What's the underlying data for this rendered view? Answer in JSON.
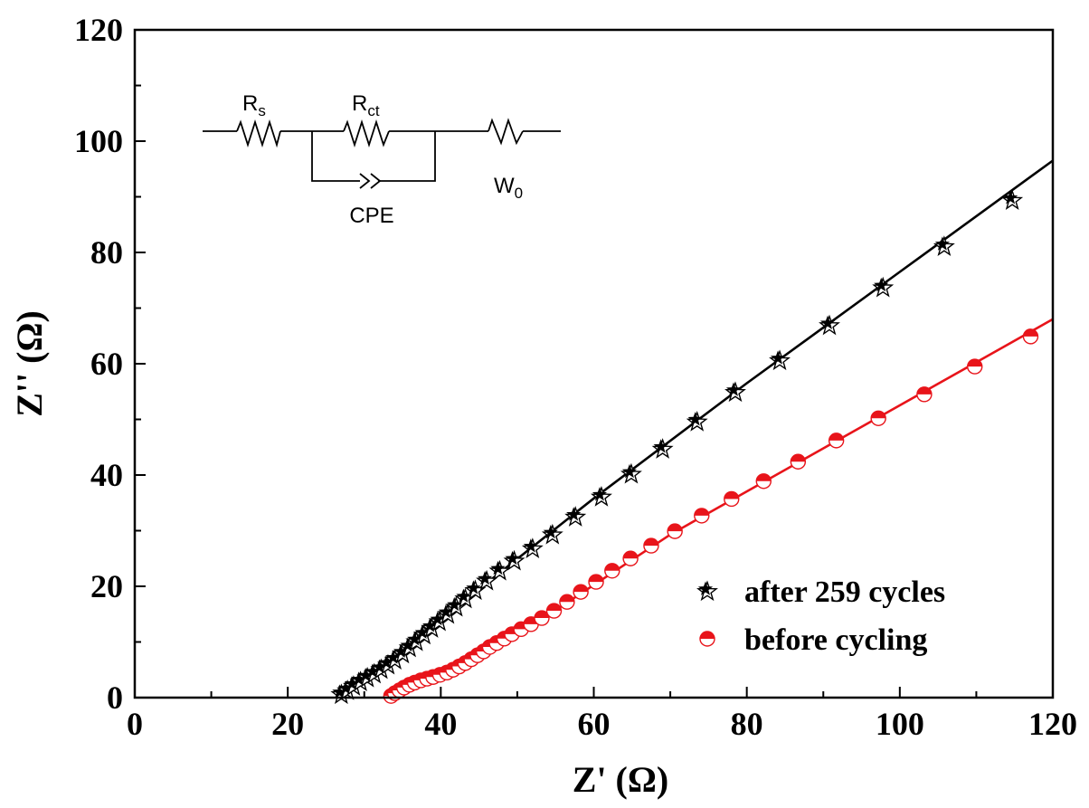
{
  "chart_data": {
    "type": "scatter",
    "xlabel": "Z' (Ω)",
    "ylabel": "Z'' (Ω)",
    "xlim": [
      0,
      120
    ],
    "ylim": [
      0,
      120
    ],
    "xticks": [
      "0",
      "20",
      "40",
      "60",
      "80",
      "100",
      "120"
    ],
    "yticks": [
      "0",
      "20",
      "40",
      "60",
      "80",
      "100",
      "120"
    ],
    "grid": false,
    "legend_position": "bottom-right",
    "series": [
      {
        "name": "after 259 cycles",
        "marker": "star",
        "color": "#000000",
        "points": [
          [
            27.0,
            0.5
          ],
          [
            27.8,
            1.2
          ],
          [
            28.6,
            2.0
          ],
          [
            29.5,
            2.8
          ],
          [
            30.4,
            3.5
          ],
          [
            31.3,
            4.2
          ],
          [
            32.2,
            5.0
          ],
          [
            33.1,
            5.8
          ],
          [
            34.0,
            6.7
          ],
          [
            35.0,
            7.8
          ],
          [
            35.9,
            8.9
          ],
          [
            36.8,
            10.0
          ],
          [
            37.8,
            11.2
          ],
          [
            38.8,
            12.4
          ],
          [
            39.8,
            13.6
          ],
          [
            40.9,
            14.9
          ],
          [
            42.0,
            16.2
          ],
          [
            43.2,
            17.7
          ],
          [
            44.5,
            19.2
          ],
          [
            46.0,
            20.9
          ],
          [
            47.7,
            22.7
          ],
          [
            49.6,
            24.5
          ],
          [
            52.0,
            26.7
          ],
          [
            54.6,
            29.2
          ],
          [
            57.6,
            32.4
          ],
          [
            61.0,
            36.0
          ],
          [
            64.9,
            40.1
          ],
          [
            69.0,
            44.6
          ],
          [
            73.5,
            49.5
          ],
          [
            78.5,
            54.8
          ],
          [
            84.3,
            60.5
          ],
          [
            90.8,
            66.8
          ],
          [
            97.8,
            73.6
          ],
          [
            105.8,
            81.0
          ],
          [
            114.7,
            89.3
          ]
        ],
        "fit_line": [
          [
            26.5,
            0
          ],
          [
            31.0,
            4.5
          ],
          [
            37.0,
            10.5
          ],
          [
            45.0,
            19.5
          ],
          [
            60.0,
            35.8
          ],
          [
            80.0,
            56.5
          ],
          [
            100.0,
            76.5
          ],
          [
            120.0,
            96.5
          ]
        ]
      },
      {
        "name": "before cycling",
        "marker": "half-filled circle",
        "color": "#e8141a",
        "points": [
          [
            33.5,
            0.3
          ],
          [
            34.0,
            0.8
          ],
          [
            34.6,
            1.3
          ],
          [
            35.2,
            1.8
          ],
          [
            35.9,
            2.3
          ],
          [
            36.6,
            2.7
          ],
          [
            37.4,
            3.1
          ],
          [
            38.2,
            3.4
          ],
          [
            39.0,
            3.7
          ],
          [
            39.9,
            4.1
          ],
          [
            40.8,
            4.5
          ],
          [
            41.6,
            5.0
          ],
          [
            42.4,
            5.6
          ],
          [
            43.2,
            6.2
          ],
          [
            44.0,
            6.9
          ],
          [
            44.8,
            7.6
          ],
          [
            45.6,
            8.3
          ],
          [
            46.4,
            9.1
          ],
          [
            47.3,
            9.8
          ],
          [
            48.3,
            10.6
          ],
          [
            49.3,
            11.4
          ],
          [
            50.5,
            12.3
          ],
          [
            51.8,
            13.2
          ],
          [
            53.2,
            14.3
          ],
          [
            54.8,
            15.6
          ],
          [
            56.5,
            17.2
          ],
          [
            58.3,
            19.0
          ],
          [
            60.3,
            20.8
          ],
          [
            62.4,
            22.8
          ],
          [
            64.8,
            25.0
          ],
          [
            67.5,
            27.3
          ],
          [
            70.6,
            29.9
          ],
          [
            74.1,
            32.7
          ],
          [
            78.0,
            35.7
          ],
          [
            82.2,
            38.9
          ],
          [
            86.7,
            42.4
          ],
          [
            91.7,
            46.2
          ],
          [
            97.2,
            50.2
          ],
          [
            103.2,
            54.5
          ],
          [
            109.8,
            59.5
          ],
          [
            117.1,
            64.9
          ]
        ],
        "fit_line": [
          [
            33.0,
            0
          ],
          [
            36.0,
            2.5
          ],
          [
            40.0,
            4.2
          ],
          [
            45.0,
            7.5
          ],
          [
            55.0,
            15.7
          ],
          [
            70.0,
            29.3
          ],
          [
            90.0,
            44.8
          ],
          [
            120.0,
            68.0
          ]
        ]
      }
    ]
  },
  "circuit": {
    "rs_main": "R",
    "rs_sub": "s",
    "rct_main": "R",
    "rct_sub": "ct",
    "cpe_label": "CPE",
    "w_main": "W",
    "w_sub": "0"
  }
}
